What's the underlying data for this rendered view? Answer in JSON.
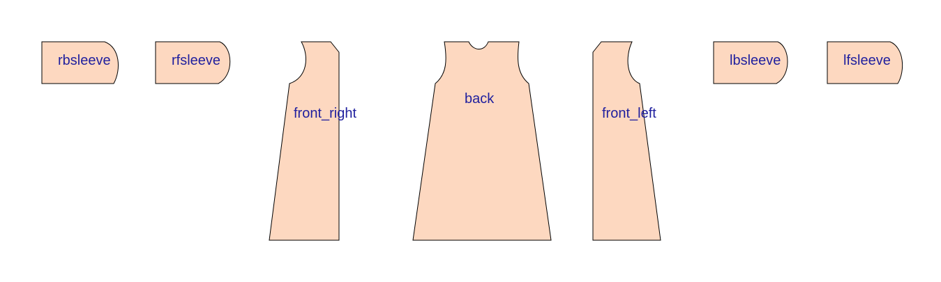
{
  "colors": {
    "piece_fill": "#fdd8c0",
    "piece_stroke": "#000000",
    "label_text": "#1f1f9e",
    "background": "#ffffff"
  },
  "pieces": [
    {
      "name": "rbsleeve"
    },
    {
      "name": "rfsleeve"
    },
    {
      "name": "front_right"
    },
    {
      "name": "back"
    },
    {
      "name": "front_left"
    },
    {
      "name": "lbsleeve"
    },
    {
      "name": "lfsleeve"
    }
  ]
}
